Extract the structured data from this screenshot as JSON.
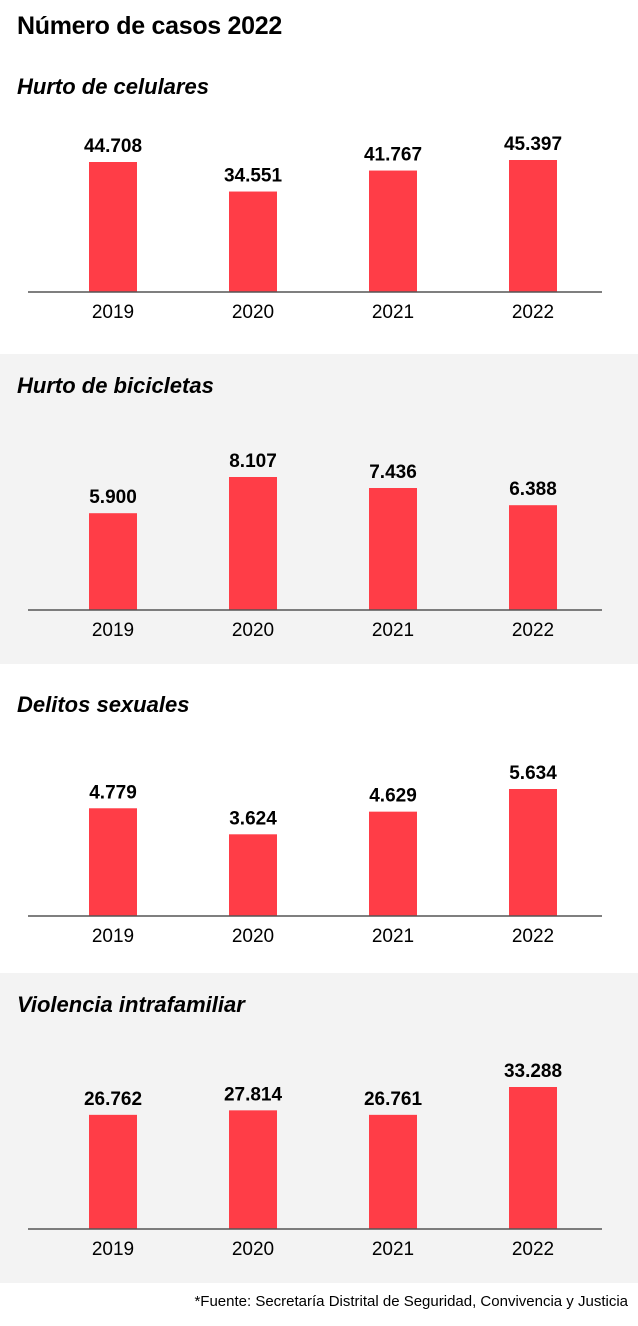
{
  "title": "Número de casos 2022",
  "source": "*Fuente: Secretaría Distrital de Seguridad, Convivencia y Justicia",
  "colors": {
    "bar": "#ff3d47",
    "shaded_panel": "#f3f3f3"
  },
  "chart_data": [
    {
      "type": "bar",
      "title": "Hurto de celulares",
      "categories": [
        "2019",
        "2020",
        "2021",
        "2022"
      ],
      "values": [
        44708,
        34551,
        41767,
        45397
      ],
      "value_labels": [
        "44.708",
        "34.551",
        "41.767",
        "45.397"
      ],
      "xlabel": "",
      "ylabel": "",
      "grid": false
    },
    {
      "type": "bar",
      "title": "Hurto de bicicletas",
      "categories": [
        "2019",
        "2020",
        "2021",
        "2022"
      ],
      "values": [
        5900,
        8107,
        7436,
        6388
      ],
      "value_labels": [
        "5.900",
        "8.107",
        "7.436",
        "6.388"
      ],
      "xlabel": "",
      "ylabel": "",
      "grid": false
    },
    {
      "type": "bar",
      "title": "Delitos sexuales",
      "categories": [
        "2019",
        "2020",
        "2021",
        "2022"
      ],
      "values": [
        4779,
        3624,
        4629,
        5634
      ],
      "value_labels": [
        "4.779",
        "3.624",
        "4.629",
        "5.634"
      ],
      "xlabel": "",
      "ylabel": "",
      "grid": false
    },
    {
      "type": "bar",
      "title": "Violencia intrafamiliar",
      "categories": [
        "2019",
        "2020",
        "2021",
        "2022"
      ],
      "values": [
        26762,
        27814,
        26761,
        33288
      ],
      "value_labels": [
        "26.762",
        "27.814",
        "26.761",
        "33.288"
      ],
      "xlabel": "",
      "ylabel": "",
      "grid": false
    }
  ]
}
